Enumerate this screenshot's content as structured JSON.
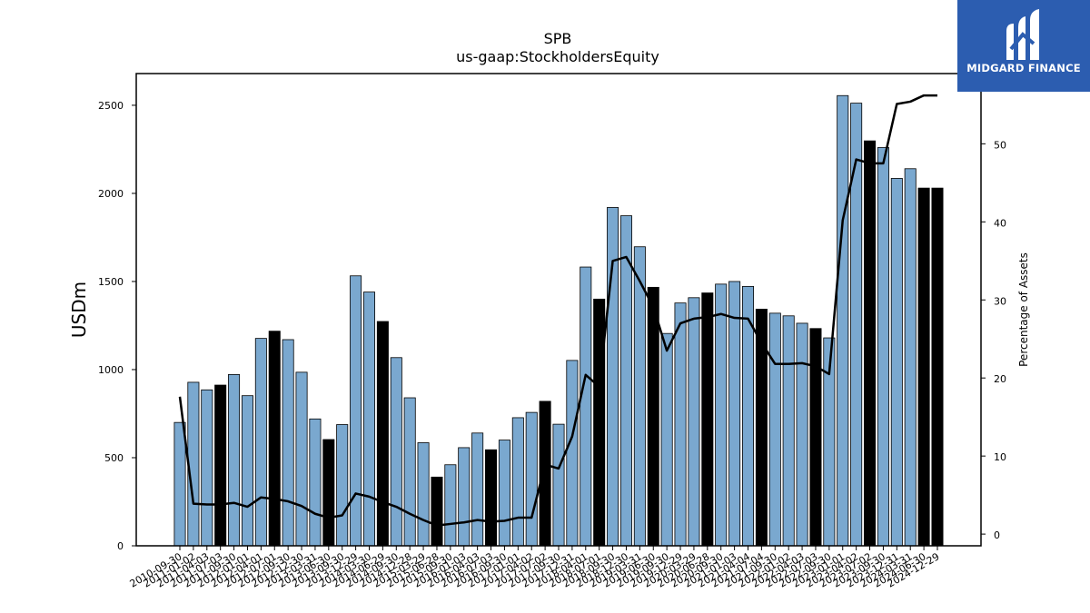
{
  "chart_data": {
    "type": "bar",
    "title": "SPB",
    "subtitle": "us-gaap:StockholdersEquity",
    "ylabel": "USDm",
    "y2label": "Percentage of Assets",
    "ylim": [
      0,
      2680
    ],
    "y2lim": [
      -1.5,
      59
    ],
    "yticks": [
      0,
      500,
      1000,
      1500,
      2000,
      2500
    ],
    "y2ticks": [
      0,
      10,
      20,
      30,
      40,
      50
    ],
    "categories": [
      "2010-09-30",
      "2011-01-02",
      "2011-04-03",
      "2011-07-03",
      "2011-09-30",
      "2012-01-01",
      "2012-04-01",
      "2012-07-01",
      "2012-09-30",
      "2012-12-30",
      "2013-03-31",
      "2013-06-30",
      "2013-09-30",
      "2013-12-29",
      "2014-03-30",
      "2014-06-29",
      "2014-09-30",
      "2014-12-28",
      "2015-03-29",
      "2015-06-28",
      "2015-09-30",
      "2016-01-03",
      "2016-04-03",
      "2016-07-03",
      "2016-09-30",
      "2017-01-01",
      "2017-04-02",
      "2017-07-02",
      "2017-09-30",
      "2017-12-31",
      "2018-04-01",
      "2018-07-01",
      "2018-09-30",
      "2018-12-30",
      "2019-03-31",
      "2019-06-30",
      "2019-09-30",
      "2019-12-29",
      "2020-03-29",
      "2020-06-28",
      "2020-09-30",
      "2021-01-03",
      "2021-04-04",
      "2021-07-04",
      "2021-09-30",
      "2022-01-02",
      "2022-04-03",
      "2022-07-03",
      "2022-09-30",
      "2023-01-01",
      "2023-04-02",
      "2023-07-02",
      "2023-09-30",
      "2023-12-31",
      "2024-03-31",
      "2024-06-30",
      "2024-12-29"
    ],
    "tick_labels": [
      "2010-09-30",
      "2011-01-02",
      "2011-04-03",
      "2011-07-03",
      "2011-09-30",
      "2012-01-01",
      "2012-04-01",
      "2012-07-01",
      "2012-09-30",
      "2012-12-30",
      "2013-03-31",
      "2013-06-30",
      "2013-09-30",
      "2013-12-29",
      "2014-03-30",
      "2014-06-29",
      "2014-09-30",
      "2014-12-28",
      "2015-03-29",
      "2015-06-28",
      "2015-09-30",
      "2016-01-03",
      "2016-04-03",
      "2016-07-03",
      "2016-09-30",
      "2017-01-01",
      "2017-04-02",
      "2017-07-02",
      "2017-09-30",
      "2017-12-31",
      "2018-04-01",
      "2018-07-01",
      "2018-09-30",
      "2018-12-30",
      "2019-03-31",
      "2019-06-30",
      "2019-09-30",
      "2019-12-29",
      "2020-03-29",
      "2020-06-28",
      "2020-09-30",
      "2021-01-03",
      "2021-04-04",
      "2021-07-04",
      "2021-09-30",
      "2022-01-02",
      "2022-04-03",
      "2022-07-03",
      "2022-09-30",
      "2023-01-01",
      "2023-04-02",
      "2023-07-02",
      "2023-09-30",
      "2023-12-31",
      "2024-03-31",
      "2024-06-30",
      "2024-12-29"
    ],
    "values": [
      700,
      928,
      885,
      912,
      972,
      852,
      1177,
      1218,
      1170,
      985,
      720,
      603,
      688,
      1532,
      1440,
      1273,
      1068,
      840,
      585,
      390,
      460,
      557,
      640,
      545,
      600,
      727,
      757,
      820,
      690,
      1052,
      1582,
      1400,
      1920,
      1873,
      1697,
      1467,
      1205,
      1378,
      1408,
      1435,
      1485,
      1500,
      1472,
      1343,
      1320,
      1305,
      1263,
      1233,
      1180,
      2555,
      2512,
      2298,
      2260,
      2085,
      2140,
      2030,
      2030
    ],
    "highlight": [
      false,
      false,
      false,
      true,
      false,
      false,
      false,
      true,
      false,
      false,
      false,
      true,
      false,
      false,
      false,
      true,
      false,
      false,
      false,
      true,
      false,
      false,
      false,
      true,
      false,
      false,
      false,
      true,
      false,
      false,
      false,
      true,
      false,
      false,
      false,
      true,
      false,
      false,
      false,
      true,
      false,
      false,
      false,
      true,
      false,
      false,
      false,
      true,
      false,
      false,
      false,
      true,
      false,
      false,
      false,
      true,
      true
    ],
    "series_line": {
      "axis": "right",
      "values": [
        17.6,
        3.9,
        3.8,
        3.8,
        4.0,
        3.5,
        4.7,
        4.5,
        4.2,
        3.6,
        2.6,
        2.1,
        2.4,
        5.2,
        4.8,
        4.1,
        3.5,
        2.6,
        1.8,
        1.1,
        1.3,
        1.5,
        1.8,
        1.6,
        1.7,
        2.1,
        2.1,
        8.9,
        8.4,
        12.5,
        20.4,
        18.9,
        35.0,
        35.5,
        32.4,
        29.1,
        23.5,
        27.0,
        27.6,
        27.8,
        28.2,
        27.7,
        27.6,
        24.5,
        21.8,
        21.8,
        21.9,
        21.5,
        20.5,
        40.2,
        48.0,
        47.5,
        47.5,
        55.1,
        55.4,
        56.2,
        56.2
      ]
    },
    "colors": {
      "bar": "#7aa8cf",
      "highlight": "#000000",
      "line": "#000000"
    },
    "grid": false,
    "legend": "none"
  },
  "logo": {
    "text": "MIDGARD FINANCE",
    "background": "#2c5db0"
  }
}
